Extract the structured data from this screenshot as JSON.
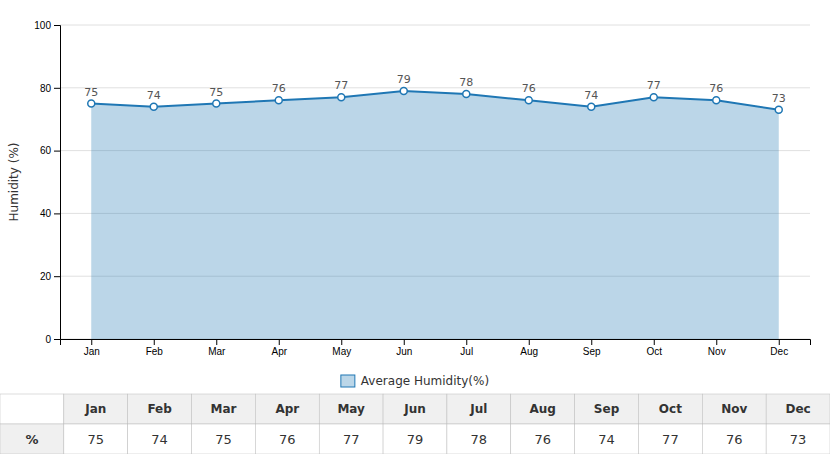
{
  "chart_data": {
    "type": "area",
    "categories": [
      "Jan",
      "Feb",
      "Mar",
      "Apr",
      "May",
      "Jun",
      "Jul",
      "Aug",
      "Sep",
      "Oct",
      "Nov",
      "Dec"
    ],
    "series": [
      {
        "name": "Average Humidity(%)",
        "values": [
          75,
          74,
          75,
          76,
          77,
          79,
          78,
          76,
          74,
          77,
          76,
          73
        ]
      }
    ],
    "ylabel": "Humidity (%)",
    "ylim": [
      0,
      100
    ],
    "yticks": [
      0,
      20,
      40,
      60,
      80,
      100
    ],
    "grid": true,
    "legend": "bottom",
    "data_labels": true,
    "marker": "circle",
    "table_label": "%"
  }
}
